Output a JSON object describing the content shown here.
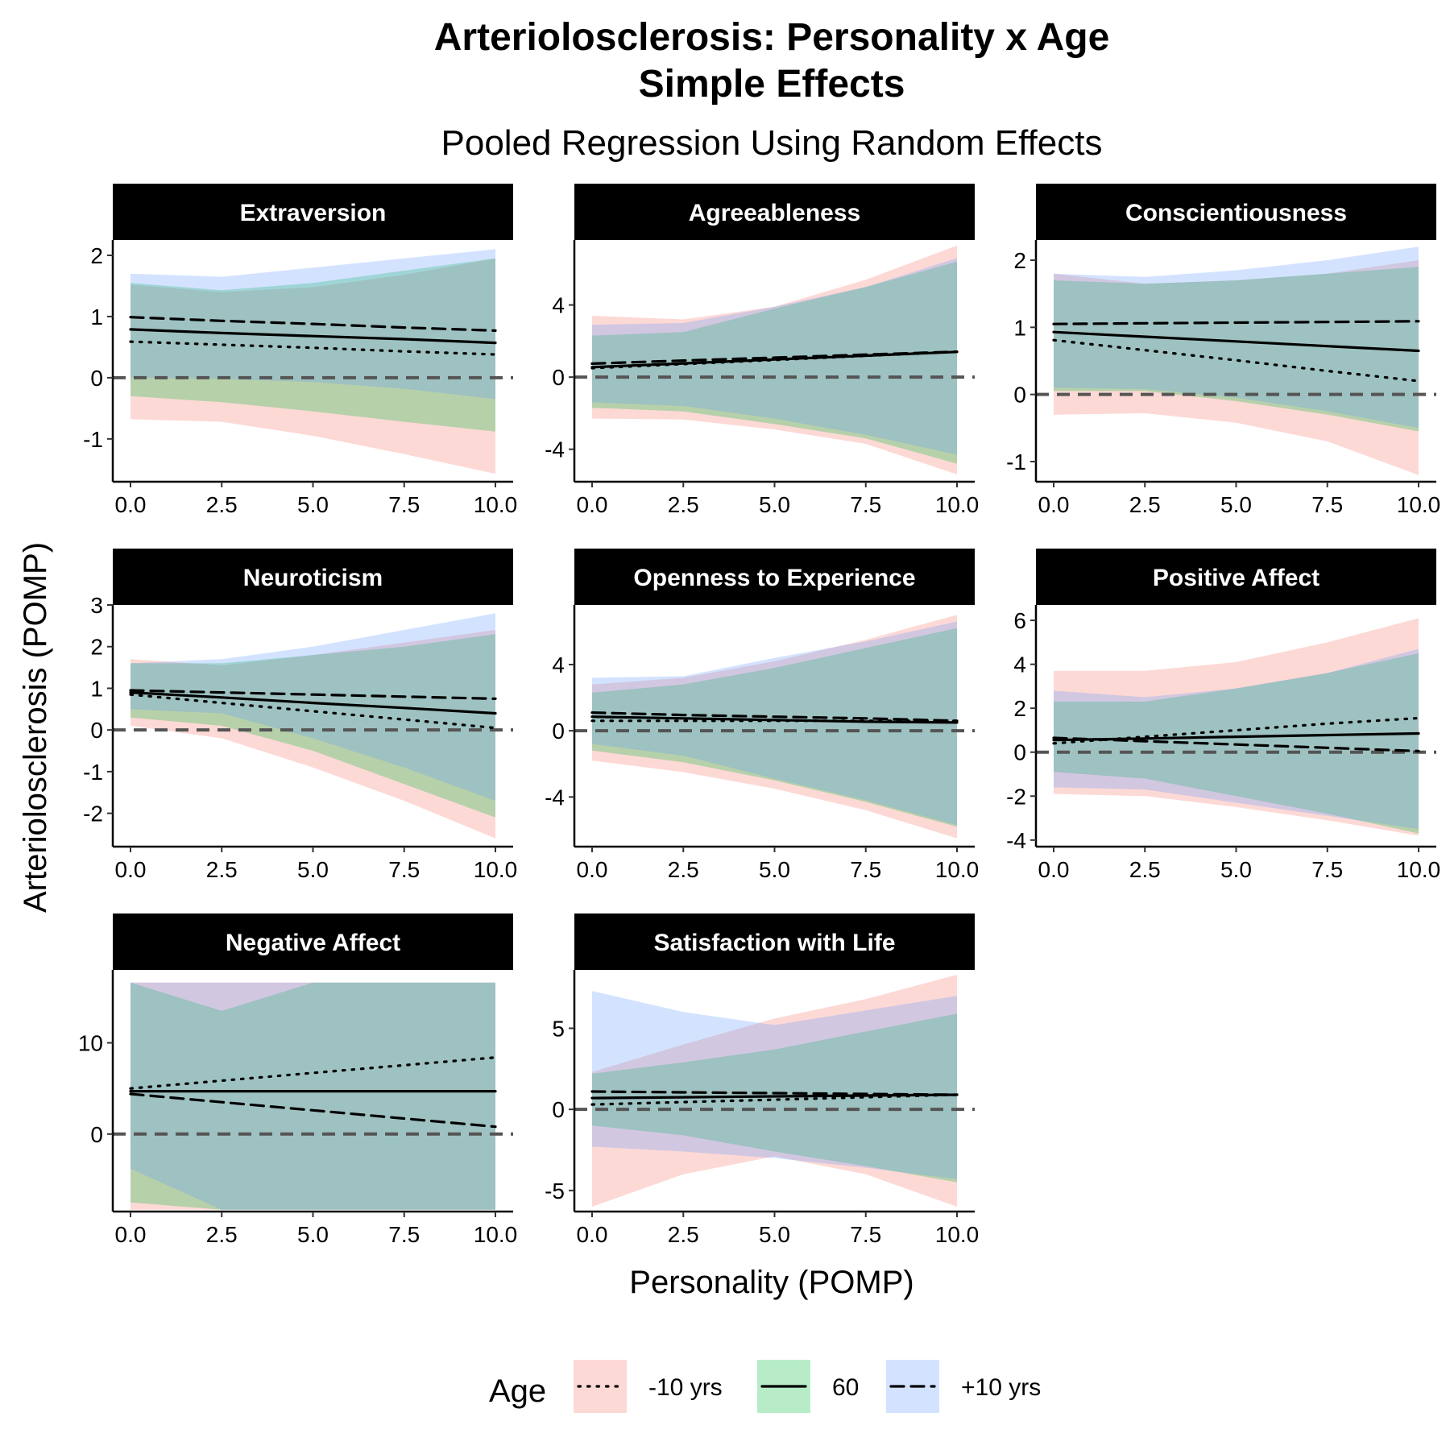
{
  "title": "Arteriolosclerosis: Personality x Age",
  "title_line2": "Simple Effects",
  "subtitle": "Pooled Regression Using Random Effects",
  "x_axis_title": "Personality (POMP)",
  "y_axis_title": "Arteriolosclerosis (POMP)",
  "legend": {
    "title": "Age",
    "items": [
      {
        "label": "-10 yrs",
        "linetype": "dotted",
        "fill": "#F8766D"
      },
      {
        "label": "60",
        "linetype": "solid",
        "fill": "#00BA38"
      },
      {
        "label": "+10 yrs",
        "linetype": "dashed",
        "fill": "#619CFF"
      }
    ]
  },
  "chart_data": {
    "type": "line",
    "facet_layout": "3 columns",
    "x_ticks": [
      "0.0",
      "2.5",
      "5.0",
      "7.5",
      "10.0"
    ],
    "xlim": [
      0,
      10
    ],
    "reference_line_y": 0,
    "band_alpha": 0.28,
    "panels": [
      {
        "name": "Extraversion",
        "ylim": [
          -1.7,
          2.25
        ],
        "y_ticks": [
          -1,
          0,
          1,
          2
        ],
        "y_tick_labels": [
          "-1",
          "0",
          "1",
          "2"
        ],
        "x": [
          0,
          2.5,
          5,
          7.5,
          10
        ],
        "series": [
          {
            "name": "-10 yrs",
            "values": [
              0.59,
              0.54,
              0.49,
              0.43,
              0.38
            ],
            "lower": [
              -0.68,
              -0.72,
              -0.95,
              -1.25,
              -1.57
            ],
            "upper": [
              1.52,
              1.4,
              1.48,
              1.68,
              1.95
            ]
          },
          {
            "name": "60",
            "values": [
              0.79,
              0.73,
              0.68,
              0.63,
              0.57
            ],
            "lower": [
              -0.3,
              -0.4,
              -0.55,
              -0.72,
              -0.88
            ],
            "upper": [
              1.55,
              1.43,
              1.55,
              1.75,
              1.95
            ]
          },
          {
            "name": "+10 yrs",
            "values": [
              0.99,
              0.93,
              0.88,
              0.82,
              0.77
            ],
            "lower": [
              0.0,
              -0.02,
              -0.07,
              -0.18,
              -0.35
            ],
            "upper": [
              1.7,
              1.65,
              1.8,
              1.95,
              2.1
            ]
          }
        ]
      },
      {
        "name": "Agreeableness",
        "ylim": [
          -5.8,
          7.6
        ],
        "y_ticks": [
          -4,
          0,
          4
        ],
        "y_tick_labels": [
          "-4",
          "0",
          "4"
        ],
        "x": [
          0,
          2.5,
          5,
          7.5,
          10
        ],
        "series": [
          {
            "name": "-10 yrs",
            "values": [
              0.5,
              0.72,
              0.95,
              1.18,
              1.4
            ],
            "lower": [
              -2.3,
              -2.35,
              -2.9,
              -3.7,
              -5.4
            ],
            "upper": [
              3.4,
              3.2,
              3.9,
              5.4,
              7.3
            ]
          },
          {
            "name": "60",
            "values": [
              0.55,
              0.76,
              0.98,
              1.19,
              1.4
            ],
            "lower": [
              -1.7,
              -1.9,
              -2.6,
              -3.4,
              -4.8
            ],
            "upper": [
              2.3,
              2.5,
              3.8,
              5.0,
              6.4
            ]
          },
          {
            "name": "+10 yrs",
            "values": [
              0.75,
              0.92,
              1.08,
              1.25,
              1.41
            ],
            "lower": [
              -1.4,
              -1.6,
              -2.3,
              -3.2,
              -4.3
            ],
            "upper": [
              2.9,
              3.0,
              3.9,
              5.0,
              6.6
            ]
          }
        ]
      },
      {
        "name": "Conscientiousness",
        "ylim": [
          -1.3,
          2.3
        ],
        "y_ticks": [
          -1,
          0,
          1,
          2
        ],
        "y_tick_labels": [
          "-1",
          "0",
          "1",
          "2"
        ],
        "x": [
          0,
          2.5,
          5,
          7.5,
          10
        ],
        "series": [
          {
            "name": "-10 yrs",
            "values": [
              0.81,
              0.66,
              0.51,
              0.35,
              0.2
            ],
            "lower": [
              -0.3,
              -0.28,
              -0.42,
              -0.7,
              -1.2
            ],
            "upper": [
              1.8,
              1.65,
              1.7,
              1.8,
              2.0
            ]
          },
          {
            "name": "60",
            "values": [
              0.93,
              0.86,
              0.79,
              0.72,
              0.65
            ],
            "lower": [
              0.05,
              0.05,
              -0.1,
              -0.3,
              -0.55
            ],
            "upper": [
              1.7,
              1.65,
              1.7,
              1.8,
              1.9
            ]
          },
          {
            "name": "+10 yrs",
            "values": [
              1.05,
              1.06,
              1.07,
              1.08,
              1.09
            ],
            "lower": [
              0.1,
              0.08,
              -0.05,
              -0.25,
              -0.5
            ],
            "upper": [
              1.8,
              1.75,
              1.85,
              2.0,
              2.2
            ]
          }
        ]
      },
      {
        "name": "Neuroticism",
        "ylim": [
          -2.8,
          3.0
        ],
        "y_ticks": [
          -2,
          -1,
          0,
          1,
          2,
          3
        ],
        "y_tick_labels": [
          "-2",
          "-1",
          "0",
          "1",
          "2",
          "3"
        ],
        "x": [
          0,
          2.5,
          5,
          7.5,
          10
        ],
        "series": [
          {
            "name": "-10 yrs",
            "values": [
              0.85,
              0.65,
              0.45,
              0.25,
              0.05
            ],
            "lower": [
              0.1,
              -0.2,
              -0.9,
              -1.7,
              -2.6
            ],
            "upper": [
              1.7,
              1.55,
              1.8,
              2.1,
              2.4
            ]
          },
          {
            "name": "60",
            "values": [
              0.9,
              0.78,
              0.65,
              0.53,
              0.4
            ],
            "lower": [
              0.3,
              0.1,
              -0.5,
              -1.3,
              -2.1
            ],
            "upper": [
              1.6,
              1.6,
              1.8,
              2.0,
              2.3
            ]
          },
          {
            "name": "+10 yrs",
            "values": [
              0.95,
              0.9,
              0.85,
              0.8,
              0.75
            ],
            "lower": [
              0.5,
              0.4,
              -0.2,
              -0.9,
              -1.7
            ],
            "upper": [
              1.6,
              1.7,
              2.0,
              2.4,
              2.8
            ]
          }
        ]
      },
      {
        "name": "Openness to Experience",
        "ylim": [
          -7.0,
          7.6
        ],
        "y_ticks": [
          -4,
          0,
          4
        ],
        "y_tick_labels": [
          "-4",
          "0",
          "4"
        ],
        "x": [
          0,
          2.5,
          5,
          7.5,
          10
        ],
        "series": [
          {
            "name": "-10 yrs",
            "values": [
              0.6,
              0.6,
              0.6,
              0.6,
              0.6
            ],
            "lower": [
              -1.8,
              -2.5,
              -3.5,
              -4.8,
              -6.5
            ],
            "upper": [
              2.8,
              3.2,
              4.2,
              5.5,
              7.0
            ]
          },
          {
            "name": "60",
            "values": [
              0.85,
              0.75,
              0.65,
              0.55,
              0.5
            ],
            "lower": [
              -1.2,
              -1.9,
              -3.0,
              -4.3,
              -5.8
            ],
            "upper": [
              2.3,
              2.8,
              3.8,
              5.0,
              6.2
            ]
          },
          {
            "name": "+10 yrs",
            "values": [
              1.1,
              0.95,
              0.85,
              0.75,
              0.6
            ],
            "lower": [
              -0.8,
              -1.5,
              -2.9,
              -4.2,
              -5.7
            ],
            "upper": [
              3.2,
              3.3,
              4.4,
              5.4,
              6.6
            ]
          }
        ]
      },
      {
        "name": "Positive Affect",
        "ylim": [
          -4.3,
          6.7
        ],
        "y_ticks": [
          -4,
          -2,
          0,
          2,
          4,
          6
        ],
        "y_tick_labels": [
          "-4",
          "-2",
          "0",
          "2",
          "4",
          "6"
        ],
        "x": [
          0,
          2.5,
          5,
          7.5,
          10
        ],
        "series": [
          {
            "name": "-10 yrs",
            "values": [
              0.4,
              0.7,
              1.0,
              1.3,
              1.55
            ],
            "lower": [
              -1.9,
              -2.0,
              -2.5,
              -3.1,
              -3.8
            ],
            "upper": [
              3.7,
              3.7,
              4.1,
              5.0,
              6.1
            ]
          },
          {
            "name": "60",
            "values": [
              0.55,
              0.62,
              0.7,
              0.78,
              0.85
            ],
            "lower": [
              -0.9,
              -1.2,
              -2.0,
              -2.8,
              -3.7
            ],
            "upper": [
              2.3,
              2.3,
              2.9,
              3.6,
              4.5
            ]
          },
          {
            "name": "+10 yrs",
            "values": [
              0.65,
              0.5,
              0.35,
              0.2,
              0.05
            ],
            "lower": [
              -1.6,
              -1.7,
              -2.3,
              -2.9,
              -3.5
            ],
            "upper": [
              2.8,
              2.5,
              2.9,
              3.6,
              4.7
            ]
          }
        ]
      },
      {
        "name": "Negative Affect",
        "ylim": [
          -8.5,
          18.0
        ],
        "y_ticks": [
          0,
          10
        ],
        "y_tick_labels": [
          "0",
          "10"
        ],
        "x": [
          0,
          2.5,
          5,
          7.5,
          10
        ],
        "series": [
          {
            "name": "-10 yrs",
            "values": [
              5.0,
              5.85,
              6.7,
              7.55,
              8.4
            ],
            "lower": [
              -8.3,
              -8.3,
              -8.3,
              -8.3,
              -8.3
            ],
            "upper": [
              16.6,
              16.6,
              16.6,
              16.6,
              16.6
            ]
          },
          {
            "name": "60",
            "values": [
              4.7,
              4.7,
              4.7,
              4.7,
              4.7
            ],
            "lower": [
              -7.5,
              -8.3,
              -8.3,
              -8.3,
              -8.3
            ],
            "upper": [
              16.6,
              13.5,
              16.6,
              16.6,
              16.6
            ]
          },
          {
            "name": "+10 yrs",
            "values": [
              4.4,
              3.5,
              2.6,
              1.7,
              0.8
            ],
            "lower": [
              -3.8,
              -8.3,
              -8.3,
              -8.3,
              -8.3
            ],
            "upper": [
              16.6,
              16.6,
              16.6,
              16.6,
              16.6
            ]
          }
        ]
      },
      {
        "name": "Satisfaction with Life",
        "ylim": [
          -6.3,
          8.6
        ],
        "y_ticks": [
          -5,
          0,
          5
        ],
        "y_tick_labels": [
          "-5",
          "0",
          "5"
        ],
        "x": [
          0,
          2.5,
          5,
          7.5,
          10
        ],
        "series": [
          {
            "name": "-10 yrs",
            "values": [
              0.3,
              0.45,
              0.6,
              0.75,
              0.9
            ],
            "lower": [
              -6.0,
              -4.0,
              -2.9,
              -4.0,
              -6.0
            ],
            "upper": [
              2.3,
              4.0,
              5.6,
              6.8,
              8.3
            ]
          },
          {
            "name": "60",
            "values": [
              0.7,
              0.75,
              0.8,
              0.85,
              0.9
            ],
            "lower": [
              -1.0,
              -1.6,
              -2.6,
              -3.5,
              -4.5
            ],
            "upper": [
              2.2,
              2.9,
              3.7,
              4.8,
              5.9
            ]
          },
          {
            "name": "+10 yrs",
            "values": [
              1.1,
              1.05,
              1.0,
              0.95,
              0.9
            ],
            "lower": [
              -2.3,
              -2.6,
              -3.0,
              -3.6,
              -4.3
            ],
            "upper": [
              7.3,
              6.0,
              5.2,
              6.1,
              7.0
            ]
          }
        ]
      }
    ]
  }
}
